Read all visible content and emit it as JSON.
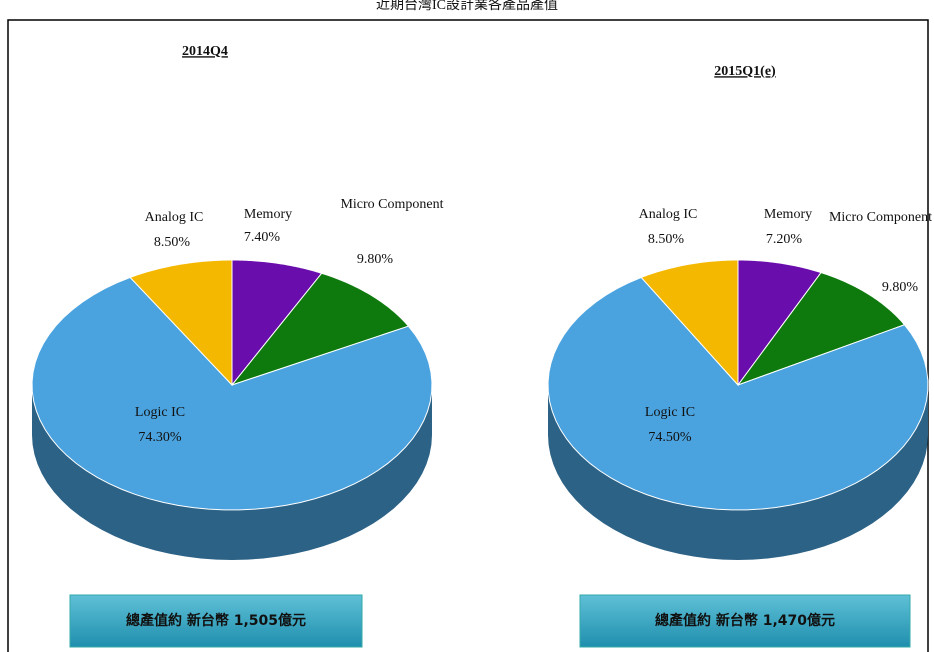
{
  "page_title": "近期台灣IC設計業各產品產值",
  "chart_data": [
    {
      "type": "pie",
      "title": "2014Q4",
      "categories": [
        "Memory",
        "Micro Component",
        "Logic IC",
        "Analog IC"
      ],
      "values": [
        7.4,
        9.8,
        74.3,
        8.5
      ],
      "value_labels": [
        "7.40%",
        "9.80%",
        "74.30%",
        "8.50%"
      ],
      "colors": [
        "#6a0dad",
        "#0e7a0e",
        "#4aa3df",
        "#f5b800"
      ],
      "footer": "總產值約 新台幣 1,505億元"
    },
    {
      "type": "pie",
      "title": "2015Q1(e)",
      "categories": [
        "Memory",
        "Micro Component",
        "Logic IC",
        "Analog IC"
      ],
      "values": [
        7.2,
        9.8,
        74.5,
        8.5
      ],
      "value_labels": [
        "7.20%",
        "9.80%",
        "74.50%",
        "8.50%"
      ],
      "colors": [
        "#6a0dad",
        "#0e7a0e",
        "#4aa3df",
        "#f5b800"
      ],
      "footer": "總產值約 新台幣 1,470億元"
    }
  ]
}
